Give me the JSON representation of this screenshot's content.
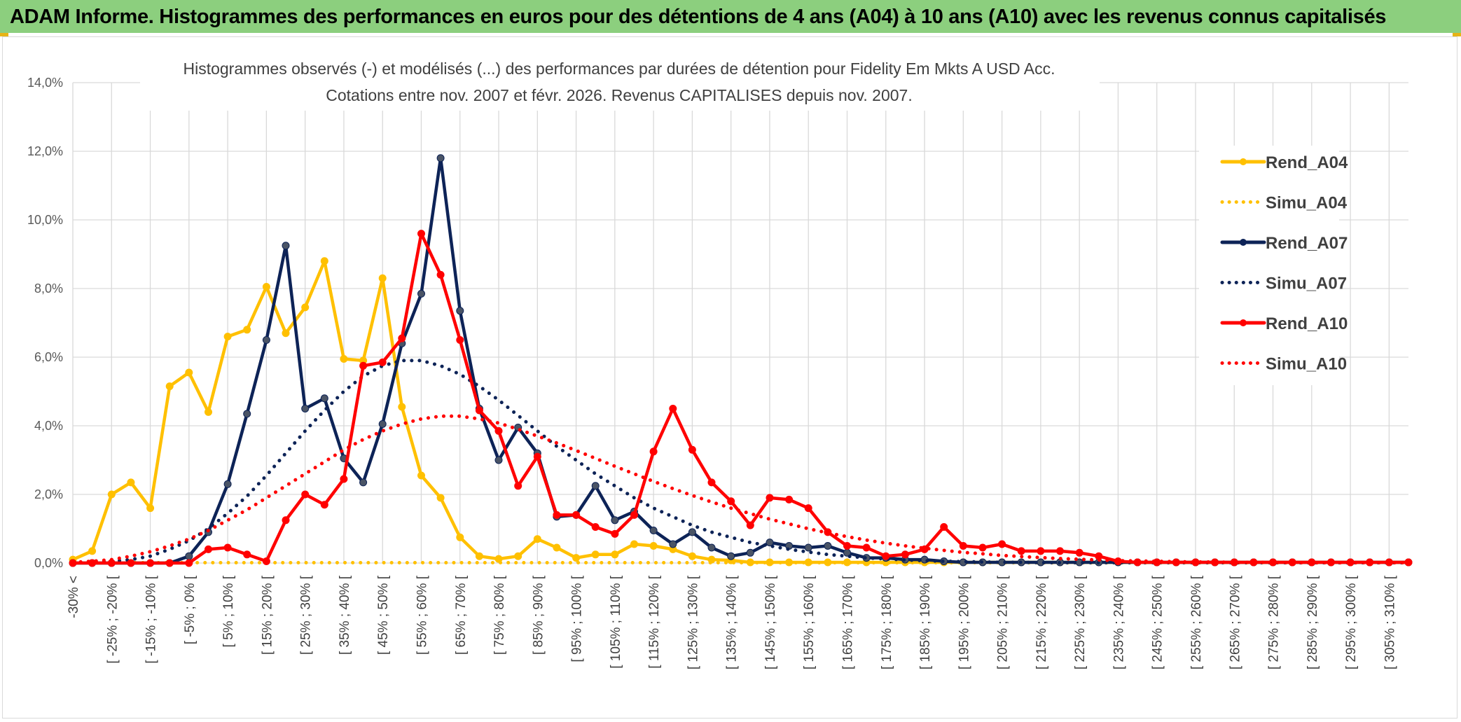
{
  "banner": {
    "title": "ADAM Informe. Histogrammes des performances en euros pour des détentions de 4 ans (A04) à 10 ans (A10) avec les revenus connus capitalisés"
  },
  "colors": {
    "banner_bg": "#8ccf7e",
    "A04": "#ffc000",
    "A07": "#0d2357",
    "A10": "#ff0000",
    "grid": "#d9d9d9"
  },
  "chart_data": {
    "type": "line",
    "title_line1": "Histogrammes observés (-) et modélisés (...) des performances par durées de détention pour Fidelity Em Mkts A USD Acc.",
    "title_line2": "Cotations entre nov. 2007 et févr. 2026. Revenus CAPITALISES depuis nov. 2007.",
    "xlabel": "",
    "ylabel": "",
    "ylim": [
      0,
      14
    ],
    "yticks": [
      "0,0%",
      "2,0%",
      "4,0%",
      "6,0%",
      "8,0%",
      "10,0%",
      "12,0%",
      "14,0%"
    ],
    "grid": true,
    "legend_position": "right",
    "categories": [
      "-30% <",
      "[ -30% ; -25% [",
      "[ -25% ; -20% [",
      "[ -20% ; -15% [",
      "[ -15% ; -10% [",
      "[ -10% ; -5% [",
      "[ -5% ; 0% [",
      "[ 0% ; 5% [",
      "[ 5% ; 10% [",
      "[ 10% ; 15% [",
      "[ 15% ; 20% [",
      "[ 20% ; 25% [",
      "[ 25% ; 30% [",
      "[ 30% ; 35% [",
      "[ 35% ; 40% [",
      "[ 40% ; 45% [",
      "[ 45% ; 50% [",
      "[ 50% ; 55% [",
      "[ 55% ; 60% [",
      "[ 60% ; 65% [",
      "[ 65% ; 70% [",
      "[ 70% ; 75% [",
      "[ 75% ; 80% [",
      "[ 80% ; 85% [",
      "[ 85% ; 90% [",
      "[ 90% ; 95% [",
      "[ 95% ; 100% [",
      "[ 100% ; 105% [",
      "[ 105% ; 110% [",
      "[ 110% ; 115% [",
      "[ 115% ; 120% [",
      "[ 120% ; 125% [",
      "[ 125% ; 130% [",
      "[ 130% ; 135% [",
      "[ 135% ; 140% [",
      "[ 140% ; 145% [",
      "[ 145% ; 150% [",
      "[ 150% ; 155% [",
      "[ 155% ; 160% [",
      "[ 160% ; 165% [",
      "[ 165% ; 170% [",
      "[ 170% ; 175% [",
      "[ 175% ; 180% [",
      "[ 180% ; 185% [",
      "[ 185% ; 190% [",
      "[ 190% ; 195% [",
      "[ 195% ; 200% [",
      "[ 200% ; 205% [",
      "[ 205% ; 210% [",
      "[ 210% ; 215% [",
      "[ 215% ; 220% [",
      "[ 220% ; 225% [",
      "[ 225% ; 230% [",
      "[ 230% ; 235% [",
      "[ 235% ; 240% [",
      "[ 240% ; 245% [",
      "[ 245% ; 250% [",
      "[ 250% ; 255% [",
      "[ 255% ; 260% [",
      "[ 260% ; 265% [",
      "[ 265% ; 270% [",
      "[ 270% ; 275% [",
      "[ 275% ; 280% [",
      "[ 280% ; 285% [",
      "[ 285% ; 290% [",
      "[ 290% ; 295% [",
      "[ 295% ; 300% [",
      "[ 300% ; 305% [",
      "[ 305% ; 310% [",
      "[ 310% ; 315% ["
    ],
    "x_tick_labels": [
      "-30% <",
      "[ -25% ; -20% [",
      "[ -15% ; -10% [",
      "[ -5% ; 0% [",
      "[ 5% ; 10% [",
      "[ 15% ; 20% [",
      "[ 25% ; 30% [",
      "[ 35% ; 40% [",
      "[ 45% ; 50% [",
      "[ 55% ; 60% [",
      "[ 65% ; 70% [",
      "[ 75% ; 80% [",
      "[ 85% ; 90% [",
      "[ 95% ; 100% [",
      "[ 105% ; 110% [",
      "[ 115% ; 120% [",
      "[ 125% ; 130% [",
      "[ 135% ; 140% [",
      "[ 145% ; 150% [",
      "[ 155% ; 160% [",
      "[ 165% ; 170% [",
      "[ 175% ; 180% [",
      "[ 185% ; 190% [",
      "[ 195% ; 200% [",
      "[ 205% ; 210% [",
      "[ 215% ; 220% [",
      "[ 225% ; 230% [",
      "[ 235% ; 240% [",
      "[ 245% ; 250% [",
      "[ 255% ; 260% [",
      "[ 265% ; 270% [",
      "[ 275% ; 280% [",
      "[ 285% ; 290% [",
      "[ 295% ; 300% [",
      "[ 305% ; 310% ["
    ],
    "series": [
      {
        "name": "Rend_A04",
        "style": "solid",
        "color": "#ffc000",
        "values": [
          0.1,
          0.35,
          2.0,
          2.35,
          1.6,
          5.15,
          5.55,
          4.4,
          6.6,
          6.8,
          8.05,
          6.7,
          7.45,
          8.8,
          5.95,
          5.9,
          8.3,
          4.55,
          2.55,
          1.9,
          0.75,
          0.2,
          0.12,
          0.2,
          0.7,
          0.45,
          0.15,
          0.25,
          0.25,
          0.55,
          0.5,
          0.4,
          0.2,
          0.1,
          0.08,
          0.02,
          0.02,
          0.02,
          0.02,
          0.02,
          0.02,
          0.02,
          0.02,
          0.02,
          0.02,
          0.02,
          0.02,
          0.02,
          0.02,
          0.02,
          0.02,
          0.02,
          0.02,
          0.02,
          0.02,
          0.02,
          0.02,
          0.02,
          0.02,
          0.02,
          0.02,
          0.02,
          0.02,
          0.02,
          0.02,
          0.02,
          0.02,
          0.02,
          0.02,
          0.02
        ]
      },
      {
        "name": "Simu_A04",
        "style": "dotted",
        "color": "#ffc000",
        "values": [
          0.01,
          0.01,
          0.01,
          0.01,
          0.01,
          0.01,
          0.01,
          0.01,
          0.01,
          0.01,
          0.01,
          0.01,
          0.01,
          0.01,
          0.01,
          0.01,
          0.01,
          0.01,
          0.01,
          0.01,
          0.01,
          0.01,
          0.01,
          0.01,
          0.01,
          0.01,
          0.01,
          0.01,
          0.01,
          0.01,
          0.01,
          0.01,
          0.01,
          0.01,
          0.01,
          0.01,
          0.01,
          0.01,
          0.01,
          0.01,
          0.01,
          0.01,
          0.01,
          0.01,
          0.01,
          0.01,
          0.01,
          0.01,
          0.01,
          0.01,
          0.01,
          0.01,
          0.01,
          0.01,
          0.01,
          0.01,
          0.01,
          0.01,
          0.01,
          0.01,
          0.01,
          0.01,
          0.01,
          0.01,
          0.01,
          0.01,
          0.01,
          0.01,
          0.01,
          0.01
        ]
      },
      {
        "name": "Rend_A07",
        "style": "solid",
        "color": "#0d2357",
        "values": [
          0,
          0,
          0,
          0,
          0,
          0,
          0.2,
          0.9,
          2.3,
          4.35,
          6.5,
          9.25,
          4.5,
          4.8,
          3.05,
          2.35,
          4.05,
          6.4,
          7.85,
          11.8,
          7.35,
          4.5,
          3.0,
          3.95,
          3.2,
          1.35,
          1.4,
          2.25,
          1.25,
          1.5,
          0.95,
          0.55,
          0.9,
          0.45,
          0.2,
          0.3,
          0.6,
          0.5,
          0.45,
          0.5,
          0.3,
          0.15,
          0.15,
          0.1,
          0.1,
          0.05,
          0.02,
          0.02,
          0.02,
          0.02,
          0.02,
          0.02,
          0.02,
          0.02,
          0.02,
          0.02,
          0.02,
          0.02,
          0.02,
          0.02,
          0.02,
          0.02,
          0.02,
          0.02,
          0.02,
          0.02,
          0.02,
          0.02,
          0.02,
          0.02
        ]
      },
      {
        "name": "Simu_A07",
        "style": "dotted",
        "color": "#0d2357",
        "values": [
          0.01,
          0.03,
          0.05,
          0.1,
          0.2,
          0.4,
          0.65,
          1.0,
          1.45,
          1.95,
          2.55,
          3.2,
          3.85,
          4.45,
          5.0,
          5.45,
          5.75,
          5.9,
          5.9,
          5.75,
          5.5,
          5.15,
          4.75,
          4.3,
          3.85,
          3.4,
          3.0,
          2.6,
          2.25,
          1.9,
          1.6,
          1.35,
          1.1,
          0.9,
          0.75,
          0.6,
          0.5,
          0.4,
          0.32,
          0.25,
          0.2,
          0.15,
          0.12,
          0.09,
          0.07,
          0.05,
          0.04,
          0.03,
          0.02,
          0.02,
          0.01,
          0.01,
          0.01,
          0.01,
          0.01,
          0.01,
          0.01,
          0.01,
          0.01,
          0.01,
          0.01,
          0.01,
          0.01,
          0.01,
          0.01,
          0.01,
          0.01,
          0.01,
          0.01,
          0.01
        ]
      },
      {
        "name": "Rend_A10",
        "style": "solid",
        "color": "#ff0000",
        "values": [
          0,
          0,
          0,
          0,
          0,
          0,
          0,
          0.4,
          0.45,
          0.25,
          0.05,
          1.25,
          2.0,
          1.7,
          2.45,
          5.75,
          5.85,
          6.55,
          9.6,
          8.4,
          6.5,
          4.45,
          3.85,
          2.25,
          3.1,
          1.4,
          1.4,
          1.05,
          0.85,
          1.4,
          3.25,
          4.5,
          3.3,
          2.35,
          1.8,
          1.1,
          1.9,
          1.85,
          1.6,
          0.9,
          0.5,
          0.45,
          0.2,
          0.25,
          0.4,
          1.05,
          0.5,
          0.45,
          0.55,
          0.35,
          0.35,
          0.35,
          0.3,
          0.2,
          0.05,
          0.02,
          0.02,
          0.02,
          0.02,
          0.02,
          0.02,
          0.02,
          0.02,
          0.02,
          0.02,
          0.02,
          0.02,
          0.02,
          0.02,
          0.02
        ]
      },
      {
        "name": "Simu_A10",
        "style": "dotted",
        "color": "#ff0000",
        "values": [
          0.02,
          0.05,
          0.1,
          0.2,
          0.33,
          0.5,
          0.7,
          0.95,
          1.25,
          1.55,
          1.9,
          2.25,
          2.6,
          2.95,
          3.3,
          3.6,
          3.85,
          4.05,
          4.2,
          4.28,
          4.28,
          4.2,
          4.08,
          3.9,
          3.7,
          3.5,
          3.28,
          3.05,
          2.82,
          2.6,
          2.38,
          2.17,
          1.97,
          1.78,
          1.6,
          1.44,
          1.28,
          1.14,
          1.0,
          0.88,
          0.77,
          0.67,
          0.58,
          0.5,
          0.43,
          0.37,
          0.31,
          0.27,
          0.22,
          0.19,
          0.16,
          0.13,
          0.11,
          0.09,
          0.07,
          0.06,
          0.05,
          0.04,
          0.03,
          0.03,
          0.02,
          0.02,
          0.02,
          0.01,
          0.01,
          0.01,
          0.01,
          0.01,
          0.01,
          0.01
        ]
      }
    ]
  }
}
